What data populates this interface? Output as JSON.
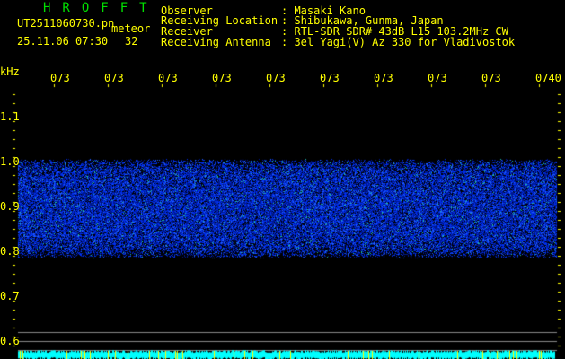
{
  "header": {
    "title": "HROFFT",
    "filename": "UT2511060730.pn",
    "mode": "meteor",
    "datetime": "25.11.06 07:30",
    "count": "32",
    "info_labels": [
      "Observer",
      "Receiving Location",
      "Receiver",
      "Receiving Antenna"
    ],
    "info_values": [
      "Masaki Kano",
      "Shibukawa, Gunma, Japan",
      "RTL-SDR SDR# 43dB L15 103.2MHz CW",
      "3el Yagi(V) Az 330 for Vladivostok"
    ]
  },
  "axis": {
    "unit": "kHz",
    "y_ticks": [
      "1.1",
      "1.0",
      "0.9",
      "0.8",
      "0.7",
      "0.6"
    ],
    "time_ticks": [
      "073",
      "073",
      "073",
      "073",
      "073",
      "073",
      "073",
      "073",
      "073",
      "0740"
    ]
  },
  "colors": {
    "text": "#ffff00",
    "title": "#00e000",
    "signal": "#0030ff",
    "power": "#00ffff"
  }
}
